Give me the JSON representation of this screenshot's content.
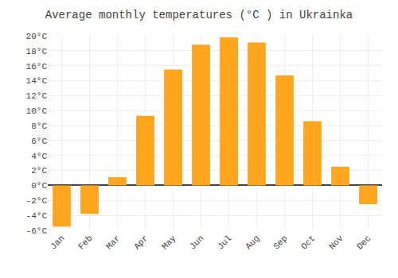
{
  "chart_data": {
    "type": "bar",
    "title": "Average monthly temperatures (°C ) in Ukrainka",
    "categories": [
      "Jan",
      "Feb",
      "Mar",
      "Apr",
      "May",
      "Jun",
      "Jul",
      "Aug",
      "Sep",
      "Oct",
      "Nov",
      "Dec"
    ],
    "values": [
      -5.5,
      -3.8,
      1.1,
      9.3,
      15.5,
      18.8,
      19.8,
      19.1,
      14.7,
      8.6,
      2.5,
      -2.5
    ],
    "color": "#FFA520",
    "ylim": [
      -6,
      20
    ],
    "yticks": [
      {
        "value": -6,
        "label": "-6°C"
      },
      {
        "value": -4,
        "label": "-4°C"
      },
      {
        "value": -2,
        "label": "-2°C"
      },
      {
        "value": 0,
        "label": "0°C"
      },
      {
        "value": 2,
        "label": "2°C"
      },
      {
        "value": 4,
        "label": "4°C"
      },
      {
        "value": 6,
        "label": "6°C"
      },
      {
        "value": 8,
        "label": "8°C"
      },
      {
        "value": 10,
        "label": "10°C"
      },
      {
        "value": 12,
        "label": "12°C"
      },
      {
        "value": 14,
        "label": "14°C"
      },
      {
        "value": 16,
        "label": "16°C"
      },
      {
        "value": 18,
        "label": "18°C"
      },
      {
        "value": 20,
        "label": "20°C"
      }
    ],
    "grid": true
  }
}
